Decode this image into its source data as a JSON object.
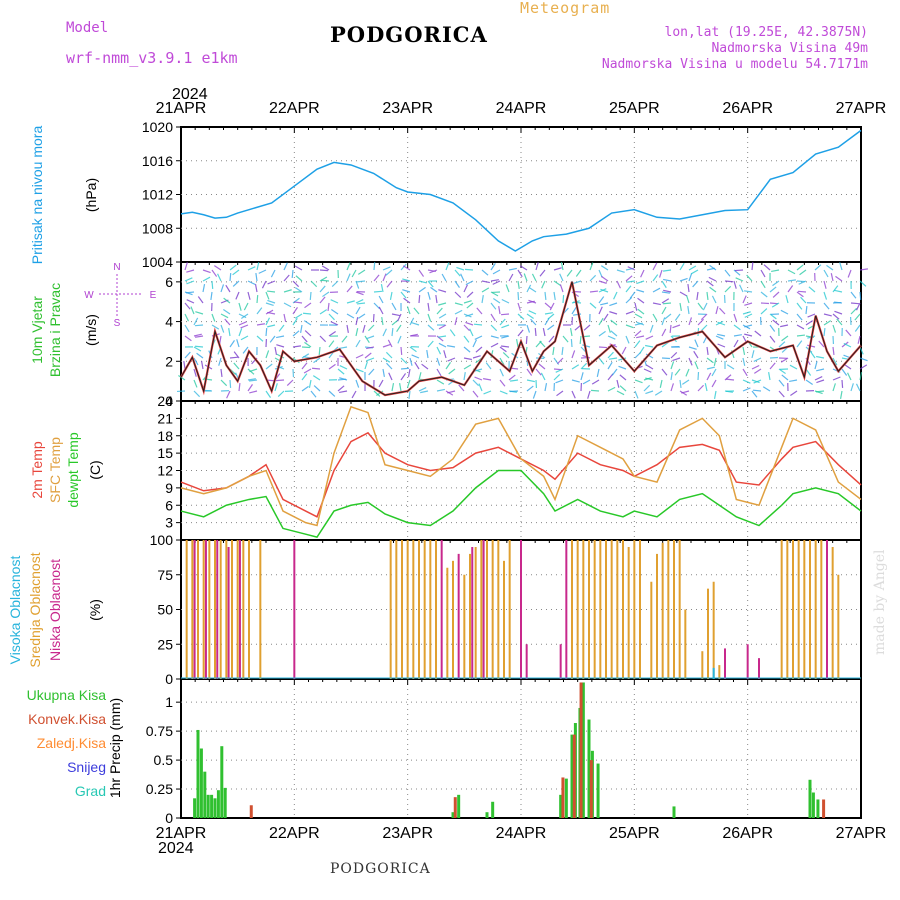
{
  "header": {
    "model_label": "Model",
    "model_name": "wrf-nmm_v3.9.1 e1km",
    "title": "PODGORICA",
    "meteogram_label": "Meteogram",
    "lonlat": "lon,lat (19.25E, 42.3875N)",
    "altitude": "Nadmorska Visina 49m",
    "model_altitude": "Nadmorska Visina u modelu 54.7171m"
  },
  "footer": {
    "station": "PODGORICA",
    "credit": "made by Angel"
  },
  "colors": {
    "pressure": "#1ea0e6",
    "temp2m": "#e8463c",
    "sfctemp": "#e0a040",
    "dewpt": "#28c828",
    "high_cloud": "#28b4dc",
    "mid_cloud": "#e0a030",
    "low_cloud": "#c8288c",
    "total_precip": "#30c030",
    "conv_precip": "#d05030",
    "grid": "#888888",
    "frozen_precip": "#ff8c32",
    "snow": "#3c3cdc",
    "hail": "#28c8b4",
    "wind_speed": "#222222",
    "gust": "#e84040"
  },
  "time_axis": {
    "year": "2024",
    "ticks": [
      "21APR",
      "22APR",
      "23APR",
      "24APR",
      "25APR",
      "26APR",
      "27APR"
    ]
  },
  "chart_data": [
    {
      "type": "line",
      "ylabel": [
        "Pritisak na nivou mora",
        "(hPa)"
      ],
      "ylim": [
        1004,
        1020
      ],
      "yticks": [
        1004,
        1008,
        1012,
        1016,
        1020
      ],
      "series": [
        {
          "name": "Pritisak na nivou mora",
          "x": [
            0,
            0.1,
            0.2,
            0.3,
            0.4,
            0.5,
            0.6,
            0.8,
            1.0,
            1.2,
            1.35,
            1.5,
            1.7,
            1.9,
            2.0,
            2.2,
            2.4,
            2.6,
            2.8,
            2.95,
            3.1,
            3.2,
            3.4,
            3.6,
            3.8,
            4.0,
            4.2,
            4.4,
            4.6,
            4.8,
            5.0,
            5.2,
            5.4,
            5.6,
            5.8,
            6.0
          ],
          "y": [
            1009.7,
            1009.9,
            1009.6,
            1009.2,
            1009.3,
            1009.8,
            1010.2,
            1011.0,
            1013.0,
            1015.0,
            1015.8,
            1015.5,
            1014.5,
            1012.8,
            1012.3,
            1012.0,
            1011.0,
            1009.0,
            1006.5,
            1005.3,
            1006.5,
            1007.0,
            1007.3,
            1008.0,
            1009.8,
            1010.2,
            1009.3,
            1009.1,
            1009.6,
            1010.1,
            1010.2,
            1013.8,
            1014.6,
            1016.8,
            1017.6,
            1019.6
          ]
        }
      ]
    },
    {
      "type": "line",
      "ylabel": [
        "10m Vjetar",
        "Brzina i Pravac",
        "(m/s)"
      ],
      "direction_labels": [
        "N",
        "S",
        "W",
        "E"
      ],
      "ylim": [
        0,
        7
      ],
      "yticks": [
        0,
        2,
        4,
        6
      ],
      "series": [
        {
          "name": "Brzina",
          "x": [
            0,
            0.1,
            0.2,
            0.3,
            0.4,
            0.5,
            0.6,
            0.7,
            0.8,
            0.9,
            1.0,
            1.2,
            1.4,
            1.6,
            1.8,
            2.0,
            2.1,
            2.3,
            2.5,
            2.7,
            2.9,
            3.0,
            3.1,
            3.2,
            3.3,
            3.45,
            3.6,
            3.8,
            4.0,
            4.2,
            4.4,
            4.6,
            4.8,
            5.0,
            5.2,
            5.4,
            5.5,
            5.6,
            5.7,
            5.8,
            6.0
          ],
          "y": [
            1.2,
            2.2,
            0.5,
            3.5,
            1.8,
            1.0,
            2.5,
            1.8,
            0.5,
            2.5,
            2.0,
            2.2,
            2.6,
            1.0,
            0.3,
            0.5,
            1.0,
            1.2,
            0.8,
            2.5,
            1.5,
            3.0,
            1.5,
            2.5,
            3.0,
            6.0,
            1.8,
            2.8,
            1.5,
            2.8,
            3.2,
            3.5,
            2.2,
            3.0,
            2.5,
            2.8,
            1.2,
            4.3,
            2.5,
            1.5,
            2.8
          ]
        }
      ]
    },
    {
      "type": "line",
      "ylabel": [
        "2m Temp",
        "SFC Temp",
        "dewpt Temp",
        "(C)"
      ],
      "ylim": [
        0,
        24
      ],
      "yticks": [
        3,
        6,
        9,
        12,
        15,
        18,
        21,
        24
      ],
      "series": [
        {
          "name": "2m Temp",
          "x": [
            0,
            0.2,
            0.4,
            0.6,
            0.75,
            0.9,
            1.1,
            1.2,
            1.35,
            1.5,
            1.65,
            1.8,
            2.0,
            2.2,
            2.4,
            2.6,
            2.8,
            3.0,
            3.2,
            3.3,
            3.5,
            3.7,
            3.9,
            4.0,
            4.2,
            4.4,
            4.6,
            4.75,
            4.9,
            5.1,
            5.3,
            5.4,
            5.6,
            5.8,
            6.0
          ],
          "y": [
            10,
            8.5,
            9,
            11,
            13,
            7,
            5,
            4,
            12,
            17,
            18.5,
            15,
            13,
            12,
            12.5,
            15,
            16,
            14,
            12,
            10.5,
            15,
            13,
            12,
            11,
            13,
            16,
            16.5,
            15.5,
            10,
            9.5,
            14,
            16,
            17,
            13,
            9.5
          ]
        },
        {
          "name": "SFC Temp",
          "x": [
            0,
            0.2,
            0.4,
            0.6,
            0.75,
            0.9,
            1.1,
            1.2,
            1.35,
            1.5,
            1.65,
            1.8,
            2.0,
            2.2,
            2.4,
            2.6,
            2.8,
            3.0,
            3.2,
            3.3,
            3.5,
            3.7,
            3.9,
            4.0,
            4.2,
            4.4,
            4.6,
            4.75,
            4.9,
            5.1,
            5.3,
            5.4,
            5.6,
            5.8,
            6.0
          ],
          "y": [
            9,
            8,
            9,
            11,
            12,
            5,
            3,
            2.5,
            15,
            23,
            22,
            13,
            12,
            11,
            14,
            20,
            21,
            14,
            11,
            7,
            18,
            16,
            14,
            11,
            10,
            19,
            21,
            18,
            7,
            6,
            16,
            21,
            19,
            10,
            7
          ]
        },
        {
          "name": "dewpt Temp",
          "x": [
            0,
            0.2,
            0.4,
            0.6,
            0.75,
            0.9,
            1.1,
            1.2,
            1.35,
            1.5,
            1.65,
            1.8,
            2.0,
            2.2,
            2.4,
            2.6,
            2.8,
            3.0,
            3.2,
            3.3,
            3.5,
            3.7,
            3.9,
            4.0,
            4.2,
            4.4,
            4.6,
            4.75,
            4.9,
            5.1,
            5.3,
            5.4,
            5.6,
            5.8,
            6.0
          ],
          "y": [
            5,
            4,
            6,
            7,
            7.5,
            2,
            1,
            0.5,
            5,
            6,
            6.5,
            4.5,
            3,
            2.5,
            5,
            9,
            12,
            12,
            8,
            5,
            7,
            5,
            4,
            5,
            4,
            7,
            8,
            6,
            4,
            2.5,
            6,
            8,
            9,
            8,
            5
          ]
        }
      ]
    },
    {
      "type": "bar",
      "ylabel": [
        "Visoka Oblacnost",
        "Srednja Oblacnost",
        "Niska Oblacnost",
        "(%)"
      ],
      "ylim": [
        0,
        100
      ],
      "yticks": [
        0,
        25,
        50,
        75,
        100
      ],
      "series": [
        {
          "name": "Srednja Oblacnost",
          "x": [
            0.05,
            0.1,
            0.15,
            0.2,
            0.25,
            0.3,
            0.35,
            0.4,
            0.45,
            0.5,
            0.55,
            0.6,
            0.7,
            1.85,
            1.9,
            1.95,
            2.0,
            2.05,
            2.1,
            2.15,
            2.2,
            2.25,
            2.35,
            2.4,
            2.5,
            2.55,
            2.6,
            2.65,
            2.7,
            2.75,
            2.8,
            2.85,
            2.9,
            3.45,
            3.5,
            3.55,
            3.6,
            3.65,
            3.7,
            3.75,
            3.8,
            3.85,
            3.9,
            3.95,
            4.0,
            4.05,
            4.15,
            4.2,
            4.25,
            4.3,
            4.35,
            4.4,
            4.45,
            4.6,
            4.65,
            4.7,
            4.75,
            5.3,
            5.35,
            5.4,
            5.45,
            5.5,
            5.55,
            5.6,
            5.65,
            5.7,
            5.75,
            5.8
          ],
          "y": [
            100,
            100,
            100,
            100,
            100,
            100,
            100,
            100,
            100,
            100,
            100,
            100,
            100,
            100,
            100,
            100,
            100,
            100,
            100,
            100,
            100,
            100,
            80,
            85,
            75,
            90,
            95,
            100,
            100,
            100,
            100,
            85,
            100,
            100,
            100,
            100,
            100,
            100,
            100,
            100,
            100,
            100,
            100,
            95,
            100,
            100,
            70,
            90,
            98,
            100,
            100,
            100,
            50,
            20,
            65,
            70,
            10,
            100,
            100,
            100,
            100,
            100,
            100,
            100,
            100,
            100,
            95,
            75
          ]
        },
        {
          "name": "Niska Oblacnost",
          "x": [
            0.12,
            0.22,
            0.32,
            0.42,
            0.52,
            1.0,
            2.3,
            2.45,
            2.57,
            2.67,
            3.0,
            3.05,
            3.35,
            3.4,
            4.8,
            5.0,
            5.1,
            5.7
          ],
          "y": [
            100,
            100,
            100,
            95,
            100,
            100,
            100,
            90,
            95,
            100,
            100,
            25,
            25,
            100,
            22,
            25,
            15,
            100
          ]
        },
        {
          "name": "Visoka Oblacnost",
          "x": [
            4.7
          ],
          "y": [
            8
          ]
        }
      ]
    },
    {
      "type": "bar",
      "ylabel": [
        "Ukupna Kisa",
        "Konvek.Kisa",
        "Zaledj.Kisa",
        "Snijeg",
        "Grad",
        "1hr Precip (mm)"
      ],
      "ylim": [
        0,
        1.2
      ],
      "yticks": [
        0,
        0.25,
        0.5,
        0.75,
        1
      ],
      "series": [
        {
          "name": "Ukupna Kisa",
          "x": [
            0.12,
            0.15,
            0.18,
            0.21,
            0.24,
            0.27,
            0.3,
            0.33,
            0.36,
            0.39,
            0.42,
            0.45,
            2.4,
            2.45,
            2.7,
            2.75,
            3.35,
            3.4,
            3.45,
            3.48,
            3.52,
            3.55,
            3.6,
            3.63,
            3.68,
            4.35,
            5.55,
            5.58,
            5.62,
            5.65
          ],
          "y": [
            0.17,
            0.76,
            0.6,
            0.4,
            0.2,
            0.2,
            0.17,
            0.24,
            0.62,
            0.26,
            0.0,
            0.0,
            0.05,
            0.2,
            0.05,
            0.14,
            0.2,
            0.34,
            0.72,
            0.82,
            0.95,
            1.17,
            0.85,
            0.58,
            0.47,
            0.1,
            0.33,
            0.22,
            0.16,
            0.0
          ]
        },
        {
          "name": "Konvek.Kisa",
          "x": [
            0.62,
            2.42,
            3.37,
            3.47,
            3.53,
            3.62,
            5.67
          ],
          "y": [
            0.11,
            0.18,
            0.35,
            0.72,
            1.17,
            0.5,
            0.16
          ]
        }
      ]
    }
  ]
}
